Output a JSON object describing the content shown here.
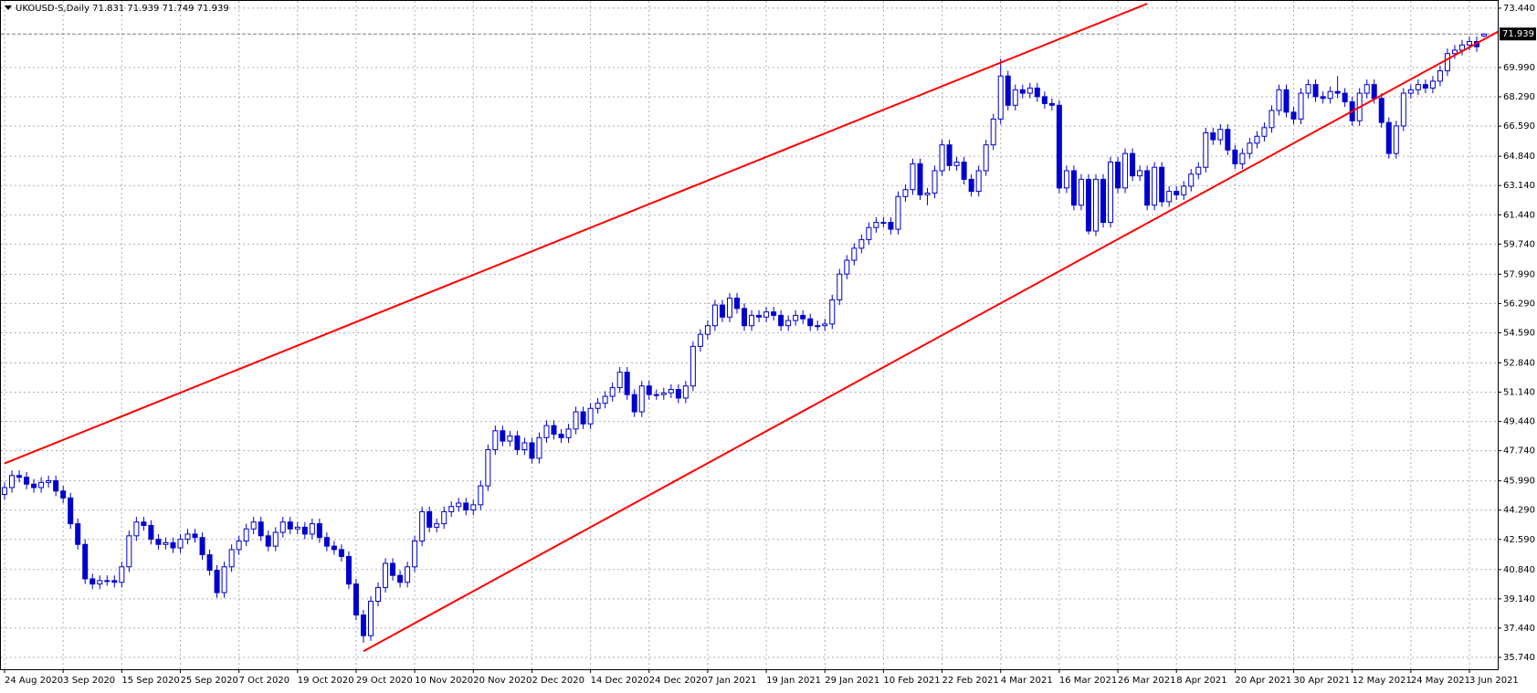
{
  "chart_data": {
    "type": "candlestick",
    "title": "UKOUSD-S,Daily  71.831 71.939 71.749 71.939",
    "color": "#0000cc",
    "bull_fill": "#ffffff",
    "bear_fill": "#0000cc",
    "grid": true,
    "ylim": [
      35.05,
      73.86
    ],
    "yticks": [
      {
        "value": 73.44,
        "label": "73.440"
      },
      {
        "value": 69.99,
        "label": "69.990"
      },
      {
        "value": 68.29,
        "label": "68.290"
      },
      {
        "value": 66.59,
        "label": "66.590"
      },
      {
        "value": 64.84,
        "label": "64.840"
      },
      {
        "value": 63.14,
        "label": "63.140"
      },
      {
        "value": 61.44,
        "label": "61.440"
      },
      {
        "value": 59.74,
        "label": "59.740"
      },
      {
        "value": 57.99,
        "label": "57.990"
      },
      {
        "value": 56.29,
        "label": "56.290"
      },
      {
        "value": 54.59,
        "label": "54.590"
      },
      {
        "value": 52.84,
        "label": "52.840"
      },
      {
        "value": 51.14,
        "label": "51.140"
      },
      {
        "value": 49.44,
        "label": "49.440"
      },
      {
        "value": 47.74,
        "label": "47.740"
      },
      {
        "value": 45.99,
        "label": "45.990"
      },
      {
        "value": 44.29,
        "label": "44.290"
      },
      {
        "value": 42.59,
        "label": "42.590"
      },
      {
        "value": 40.84,
        "label": "40.840"
      },
      {
        "value": 39.14,
        "label": "39.140"
      },
      {
        "value": 37.44,
        "label": "37.440"
      },
      {
        "value": 35.74,
        "label": "35.740"
      }
    ],
    "last_price": {
      "value": 71.939,
      "label": "71.939"
    },
    "trendlines": [
      {
        "color": "#ff0000",
        "x": [
          0,
          156
        ],
        "y": [
          47.0,
          73.7
        ]
      },
      {
        "color": "#ff0000",
        "x": [
          49,
          204
        ],
        "y": [
          36.1,
          72.1
        ]
      }
    ],
    "categories": [
      "24 Aug 2020",
      null,
      null,
      null,
      null,
      null,
      null,
      null,
      "3 Sep 2020",
      null,
      null,
      null,
      null,
      null,
      null,
      null,
      "15 Sep 2020",
      null,
      null,
      null,
      null,
      null,
      null,
      null,
      "25 Sep 2020",
      null,
      null,
      null,
      null,
      null,
      null,
      null,
      "7 Oct 2020",
      null,
      null,
      null,
      null,
      null,
      null,
      null,
      "19 Oct 2020",
      null,
      null,
      null,
      null,
      null,
      null,
      null,
      "29 Oct 2020",
      null,
      null,
      null,
      null,
      null,
      null,
      null,
      "10 Nov 2020",
      null,
      null,
      null,
      null,
      null,
      null,
      null,
      "20 Nov 2020",
      null,
      null,
      null,
      null,
      null,
      null,
      null,
      "2 Dec 2020",
      null,
      null,
      null,
      null,
      null,
      null,
      null,
      "14 Dec 2020",
      null,
      null,
      null,
      null,
      null,
      null,
      null,
      "24 Dec 2020",
      null,
      null,
      null,
      null,
      null,
      null,
      null,
      "7 Jan 2021",
      null,
      null,
      null,
      null,
      null,
      null,
      null,
      "19 Jan 2021",
      null,
      null,
      null,
      null,
      null,
      null,
      null,
      "29 Jan 2021",
      null,
      null,
      null,
      null,
      null,
      null,
      null,
      "10 Feb 2021",
      null,
      null,
      null,
      null,
      null,
      null,
      null,
      "22 Feb 2021",
      null,
      null,
      null,
      null,
      null,
      null,
      null,
      "4 Mar 2021",
      null,
      null,
      null,
      null,
      null,
      null,
      null,
      "16 Mar 2021",
      null,
      null,
      null,
      null,
      null,
      null,
      null,
      "26 Mar 2021",
      null,
      null,
      null,
      null,
      null,
      null,
      null,
      "8 Apr 2021",
      null,
      null,
      null,
      null,
      null,
      null,
      null,
      "20 Apr 2021",
      null,
      null,
      null,
      null,
      null,
      null,
      null,
      "30 Apr 2021",
      null,
      null,
      null,
      null,
      null,
      null,
      null,
      "12 May 2021",
      null,
      null,
      null,
      null,
      null,
      null,
      null,
      "24 May 2021",
      null,
      null,
      null,
      null,
      null,
      null,
      null,
      "3 Jun 2021",
      null,
      null
    ],
    "candles": [
      [
        45.2,
        45.9,
        44.9,
        45.6
      ],
      [
        45.6,
        46.6,
        45.3,
        46.3
      ],
      [
        46.3,
        46.6,
        45.9,
        46.2
      ],
      [
        46.2,
        46.5,
        45.5,
        45.8
      ],
      [
        45.8,
        46.1,
        45.3,
        45.6
      ],
      [
        45.6,
        46.2,
        45.3,
        45.9
      ],
      [
        45.9,
        46.3,
        45.6,
        46.0
      ],
      [
        46.0,
        46.3,
        45.1,
        45.4
      ],
      [
        45.4,
        45.7,
        44.7,
        45.0
      ],
      [
        45.0,
        45.3,
        43.2,
        43.5
      ],
      [
        43.5,
        43.8,
        42.0,
        42.3
      ],
      [
        42.3,
        42.6,
        40.0,
        40.3
      ],
      [
        40.3,
        40.6,
        39.7,
        40.0
      ],
      [
        40.0,
        40.5,
        39.7,
        40.2
      ],
      [
        40.2,
        40.5,
        39.9,
        40.2
      ],
      [
        40.2,
        40.5,
        39.8,
        40.1
      ],
      [
        40.1,
        41.3,
        39.8,
        41.0
      ],
      [
        41.0,
        43.1,
        40.7,
        42.8
      ],
      [
        42.8,
        43.9,
        42.5,
        43.6
      ],
      [
        43.6,
        43.9,
        43.1,
        43.4
      ],
      [
        43.4,
        43.7,
        42.3,
        42.6
      ],
      [
        42.6,
        42.9,
        42.0,
        42.3
      ],
      [
        42.3,
        42.7,
        42.0,
        42.4
      ],
      [
        42.4,
        42.7,
        41.8,
        42.1
      ],
      [
        42.1,
        42.9,
        41.8,
        42.6
      ],
      [
        42.6,
        43.2,
        42.3,
        42.9
      ],
      [
        42.9,
        43.2,
        42.4,
        42.7
      ],
      [
        42.7,
        43.0,
        41.4,
        41.7
      ],
      [
        41.7,
        42.0,
        40.5,
        40.8
      ],
      [
        40.8,
        41.1,
        39.2,
        39.5
      ],
      [
        39.5,
        41.3,
        39.2,
        41.0
      ],
      [
        41.0,
        42.3,
        40.7,
        42.0
      ],
      [
        42.0,
        42.8,
        41.7,
        42.5
      ],
      [
        42.5,
        43.5,
        42.2,
        43.2
      ],
      [
        43.2,
        43.9,
        42.9,
        43.6
      ],
      [
        43.6,
        43.9,
        42.5,
        42.8
      ],
      [
        42.8,
        43.1,
        41.9,
        42.2
      ],
      [
        42.2,
        43.3,
        41.9,
        43.0
      ],
      [
        43.0,
        43.9,
        42.7,
        43.6
      ],
      [
        43.6,
        43.9,
        42.9,
        43.2
      ],
      [
        43.2,
        43.6,
        42.9,
        43.3
      ],
      [
        43.3,
        43.6,
        42.6,
        42.9
      ],
      [
        42.9,
        43.8,
        42.6,
        43.5
      ],
      [
        43.5,
        43.8,
        42.4,
        42.7
      ],
      [
        42.7,
        43.0,
        41.9,
        42.2
      ],
      [
        42.2,
        42.5,
        41.7,
        42.0
      ],
      [
        42.0,
        42.3,
        41.3,
        41.6
      ],
      [
        41.6,
        41.9,
        39.7,
        40.0
      ],
      [
        40.0,
        40.3,
        37.9,
        38.2
      ],
      [
        38.2,
        38.5,
        36.6,
        37.0
      ],
      [
        37.0,
        39.3,
        36.7,
        39.0
      ],
      [
        39.0,
        40.1,
        38.7,
        39.8
      ],
      [
        39.8,
        41.5,
        39.5,
        41.2
      ],
      [
        41.2,
        41.5,
        40.2,
        40.5
      ],
      [
        40.5,
        40.8,
        39.8,
        40.1
      ],
      [
        40.1,
        41.3,
        39.8,
        41.0
      ],
      [
        41.0,
        42.8,
        40.7,
        42.5
      ],
      [
        42.5,
        44.5,
        42.2,
        44.2
      ],
      [
        44.2,
        44.5,
        43.0,
        43.3
      ],
      [
        43.3,
        43.8,
        43.0,
        43.5
      ],
      [
        43.5,
        44.5,
        43.2,
        44.2
      ],
      [
        44.2,
        44.8,
        43.9,
        44.5
      ],
      [
        44.5,
        45.0,
        44.2,
        44.7
      ],
      [
        44.7,
        45.0,
        44.0,
        44.3
      ],
      [
        44.3,
        44.9,
        44.0,
        44.6
      ],
      [
        44.6,
        46.0,
        44.3,
        45.7
      ],
      [
        45.7,
        48.1,
        45.4,
        47.8
      ],
      [
        47.8,
        49.2,
        47.5,
        48.9
      ],
      [
        48.9,
        49.2,
        48.0,
        48.3
      ],
      [
        48.3,
        48.9,
        48.0,
        48.6
      ],
      [
        48.6,
        48.9,
        47.5,
        47.8
      ],
      [
        47.8,
        48.5,
        47.5,
        48.2
      ],
      [
        48.2,
        48.5,
        47.0,
        47.3
      ],
      [
        47.3,
        48.8,
        47.0,
        48.5
      ],
      [
        48.5,
        49.5,
        48.2,
        49.2
      ],
      [
        49.2,
        49.5,
        48.4,
        48.7
      ],
      [
        48.7,
        49.0,
        48.2,
        48.5
      ],
      [
        48.5,
        49.3,
        48.2,
        49.0
      ],
      [
        49.0,
        50.3,
        48.7,
        50.0
      ],
      [
        50.0,
        50.3,
        49.0,
        49.3
      ],
      [
        49.3,
        50.5,
        49.0,
        50.2
      ],
      [
        50.2,
        50.8,
        49.9,
        50.5
      ],
      [
        50.5,
        51.2,
        50.2,
        50.9
      ],
      [
        50.9,
        51.7,
        50.6,
        51.4
      ],
      [
        51.4,
        52.6,
        51.1,
        52.3
      ],
      [
        52.3,
        52.6,
        50.7,
        51.0
      ],
      [
        51.0,
        51.3,
        49.7,
        50.0
      ],
      [
        50.0,
        51.8,
        49.7,
        51.5
      ],
      [
        51.5,
        51.8,
        50.7,
        51.0
      ],
      [
        51.0,
        51.3,
        50.7,
        51.0
      ],
      [
        51.0,
        51.4,
        50.7,
        51.1
      ],
      [
        51.1,
        51.6,
        50.8,
        51.3
      ],
      [
        51.3,
        51.6,
        50.5,
        50.8
      ],
      [
        50.8,
        51.8,
        50.5,
        51.5
      ],
      [
        51.5,
        54.1,
        51.2,
        53.8
      ],
      [
        53.8,
        54.8,
        53.5,
        54.5
      ],
      [
        54.5,
        55.3,
        54.2,
        55.0
      ],
      [
        55.0,
        56.5,
        54.7,
        56.2
      ],
      [
        56.2,
        56.5,
        55.2,
        55.5
      ],
      [
        55.5,
        56.9,
        55.2,
        56.6
      ],
      [
        56.6,
        56.9,
        55.7,
        56.0
      ],
      [
        56.0,
        56.3,
        54.7,
        55.0
      ],
      [
        55.0,
        55.9,
        54.7,
        55.6
      ],
      [
        55.6,
        55.9,
        55.2,
        55.5
      ],
      [
        55.5,
        56.1,
        55.2,
        55.8
      ],
      [
        55.8,
        56.1,
        55.3,
        55.6
      ],
      [
        55.6,
        55.9,
        54.7,
        55.0
      ],
      [
        55.0,
        55.6,
        54.7,
        55.3
      ],
      [
        55.3,
        55.9,
        55.0,
        55.6
      ],
      [
        55.6,
        55.9,
        55.1,
        55.4
      ],
      [
        55.4,
        55.7,
        54.7,
        55.0
      ],
      [
        55.0,
        55.3,
        54.7,
        55.0
      ],
      [
        55.0,
        55.4,
        54.7,
        55.1
      ],
      [
        55.1,
        56.8,
        54.8,
        56.5
      ],
      [
        56.5,
        58.3,
        56.2,
        58.0
      ],
      [
        58.0,
        59.1,
        57.7,
        58.8
      ],
      [
        58.8,
        59.8,
        58.5,
        59.5
      ],
      [
        59.5,
        60.3,
        59.2,
        60.0
      ],
      [
        60.0,
        61.0,
        59.7,
        60.7
      ],
      [
        60.7,
        61.3,
        60.4,
        61.0
      ],
      [
        61.0,
        61.3,
        60.7,
        61.0
      ],
      [
        61.0,
        61.3,
        60.3,
        60.6
      ],
      [
        60.6,
        62.8,
        60.3,
        62.5
      ],
      [
        62.5,
        63.2,
        62.2,
        62.9
      ],
      [
        62.9,
        64.7,
        62.6,
        64.4
      ],
      [
        64.4,
        64.7,
        62.3,
        62.6
      ],
      [
        62.6,
        63.0,
        62.0,
        62.7
      ],
      [
        62.7,
        64.3,
        62.4,
        64.0
      ],
      [
        64.0,
        65.8,
        63.7,
        65.5
      ],
      [
        65.5,
        65.8,
        64.0,
        64.3
      ],
      [
        64.3,
        64.8,
        64.0,
        64.5
      ],
      [
        64.5,
        64.8,
        63.2,
        63.5
      ],
      [
        63.5,
        63.8,
        62.5,
        62.8
      ],
      [
        62.8,
        64.3,
        62.5,
        64.0
      ],
      [
        64.0,
        65.8,
        63.7,
        65.5
      ],
      [
        65.5,
        67.3,
        65.2,
        67.0
      ],
      [
        67.0,
        70.5,
        66.7,
        69.5
      ],
      [
        69.5,
        69.8,
        67.5,
        67.8
      ],
      [
        67.8,
        69.0,
        67.5,
        68.7
      ],
      [
        68.7,
        69.0,
        68.2,
        68.5
      ],
      [
        68.5,
        69.1,
        68.2,
        68.8
      ],
      [
        68.8,
        69.1,
        68.0,
        68.3
      ],
      [
        68.3,
        68.6,
        67.6,
        67.9
      ],
      [
        67.9,
        68.2,
        67.5,
        67.8
      ],
      [
        67.8,
        68.1,
        62.7,
        63.0
      ],
      [
        63.0,
        64.3,
        62.7,
        64.0
      ],
      [
        64.0,
        64.3,
        61.7,
        62.0
      ],
      [
        62.0,
        63.8,
        61.7,
        63.5
      ],
      [
        63.5,
        63.8,
        60.3,
        60.5
      ],
      [
        60.5,
        63.8,
        60.2,
        63.5
      ],
      [
        63.5,
        63.8,
        60.7,
        61.0
      ],
      [
        61.0,
        64.8,
        60.7,
        64.5
      ],
      [
        64.5,
        64.8,
        62.7,
        63.0
      ],
      [
        63.0,
        65.3,
        62.7,
        65.0
      ],
      [
        65.0,
        65.3,
        63.4,
        63.7
      ],
      [
        63.7,
        64.3,
        63.4,
        64.0
      ],
      [
        64.0,
        64.3,
        61.7,
        62.0
      ],
      [
        62.0,
        64.5,
        61.7,
        64.2
      ],
      [
        64.2,
        64.5,
        61.9,
        62.2
      ],
      [
        62.2,
        63.1,
        61.9,
        62.8
      ],
      [
        62.8,
        63.1,
        62.3,
        62.6
      ],
      [
        62.6,
        63.4,
        62.3,
        63.1
      ],
      [
        63.1,
        64.1,
        62.8,
        63.8
      ],
      [
        63.8,
        64.5,
        63.5,
        64.2
      ],
      [
        64.2,
        66.5,
        63.9,
        66.2
      ],
      [
        66.2,
        66.5,
        65.5,
        65.8
      ],
      [
        65.8,
        66.7,
        65.5,
        66.4
      ],
      [
        66.4,
        66.7,
        64.9,
        65.2
      ],
      [
        65.2,
        65.5,
        64.1,
        64.4
      ],
      [
        64.4,
        65.3,
        64.1,
        65.0
      ],
      [
        65.0,
        65.9,
        64.7,
        65.6
      ],
      [
        65.6,
        66.3,
        65.3,
        66.0
      ],
      [
        66.0,
        66.8,
        65.7,
        66.5
      ],
      [
        66.5,
        67.8,
        66.2,
        67.5
      ],
      [
        67.5,
        69.0,
        67.2,
        68.7
      ],
      [
        68.7,
        69.0,
        67.1,
        67.4
      ],
      [
        67.4,
        67.7,
        66.7,
        67.0
      ],
      [
        67.0,
        68.8,
        66.7,
        68.5
      ],
      [
        68.5,
        69.3,
        68.2,
        69.0
      ],
      [
        69.0,
        69.3,
        68.0,
        68.3
      ],
      [
        68.3,
        68.6,
        67.9,
        68.2
      ],
      [
        68.2,
        68.9,
        67.9,
        68.6
      ],
      [
        68.6,
        69.5,
        68.2,
        68.5
      ],
      [
        68.5,
        68.8,
        67.7,
        68.0
      ],
      [
        68.0,
        68.3,
        66.6,
        66.9
      ],
      [
        66.9,
        68.8,
        66.6,
        68.5
      ],
      [
        68.5,
        69.3,
        68.2,
        69.0
      ],
      [
        69.0,
        69.3,
        67.9,
        68.2
      ],
      [
        68.2,
        68.5,
        66.5,
        66.8
      ],
      [
        66.8,
        67.1,
        64.7,
        65.0
      ],
      [
        65.0,
        66.9,
        64.7,
        66.6
      ],
      [
        66.6,
        68.8,
        66.3,
        68.5
      ],
      [
        68.5,
        69.0,
        68.2,
        68.7
      ],
      [
        68.7,
        69.3,
        68.4,
        69.0
      ],
      [
        69.0,
        69.3,
        68.5,
        68.8
      ],
      [
        68.8,
        69.5,
        68.5,
        69.2
      ],
      [
        69.2,
        70.1,
        68.9,
        69.8
      ],
      [
        69.8,
        71.1,
        69.5,
        70.8
      ],
      [
        70.8,
        71.3,
        70.5,
        71.0
      ],
      [
        71.0,
        71.6,
        70.7,
        71.3
      ],
      [
        71.3,
        71.8,
        71.0,
        71.5
      ],
      [
        71.5,
        71.8,
        70.9,
        71.2
      ],
      [
        71.831,
        71.939,
        71.749,
        71.939
      ]
    ]
  }
}
